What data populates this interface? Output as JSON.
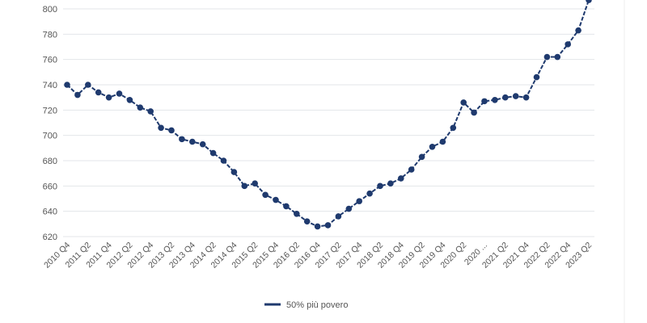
{
  "chart_data": {
    "type": "line",
    "title": "",
    "xlabel": "",
    "ylabel": "",
    "ylim": [
      610,
      810
    ],
    "yticks": [
      620,
      640,
      660,
      680,
      700,
      720,
      740,
      760,
      780,
      800
    ],
    "grid": true,
    "legend_position": "bottom",
    "x": [
      "2010 Q4",
      "2011 Q1",
      "2011 Q2",
      "2011 Q3",
      "2011 Q4",
      "2012 Q1",
      "2012 Q2",
      "2012 Q3",
      "2012 Q4",
      "2013 Q1",
      "2013 Q2",
      "2013 Q3",
      "2013 Q4",
      "2014 Q1",
      "2014 Q2",
      "2014 Q3",
      "2014 Q4",
      "2015 Q1",
      "2015 Q2",
      "2015 Q3",
      "2015 Q4",
      "2016 Q1",
      "2016 Q2",
      "2016 Q3",
      "2016 Q4",
      "2017 Q1",
      "2017 Q2",
      "2017 Q3",
      "2017 Q4",
      "2018 Q1",
      "2018 Q2",
      "2018 Q3",
      "2018 Q4",
      "2019 Q1",
      "2019 Q2",
      "2019 Q3",
      "2019 Q4",
      "2020 Q1",
      "2020 Q2",
      "2020 Q3",
      "2020 Q4",
      "2021 Q1",
      "2021 Q2",
      "2021 Q3",
      "2021 Q4",
      "2022 Q1",
      "2022 Q2",
      "2022 Q3",
      "2022 Q4",
      "2023 Q1",
      "2023 Q2"
    ],
    "x_tick_labels": [
      "2010 Q4",
      "2011 Q2",
      "2011 Q4",
      "2012 Q2",
      "2012 Q4",
      "2013 Q2",
      "2013 Q4",
      "2014 Q2",
      "2014 Q4",
      "2015 Q2",
      "2015 Q4",
      "2016 Q2",
      "2016 Q4",
      "2017 Q2",
      "2017 Q4",
      "2018 Q2",
      "2018 Q4",
      "2019 Q2",
      "2019 Q4",
      "2020 Q2",
      "2020 ...",
      "2021 Q2",
      "2021 Q4",
      "2022 Q2",
      "2022 Q4",
      "2023 Q2"
    ],
    "series": [
      {
        "name": "50% più povero",
        "color": "#1f3a6e",
        "values": [
          740,
          732,
          740,
          734,
          730,
          733,
          728,
          722,
          719,
          706,
          704,
          697,
          695,
          693,
          686,
          680,
          671,
          660,
          662,
          653,
          649,
          644,
          638,
          632,
          628,
          629,
          636,
          642,
          648,
          654,
          660,
          662,
          666,
          673,
          683,
          691,
          695,
          706,
          726,
          718,
          727,
          728,
          730,
          731,
          730,
          746,
          762,
          762,
          772,
          783,
          807
        ]
      }
    ]
  }
}
